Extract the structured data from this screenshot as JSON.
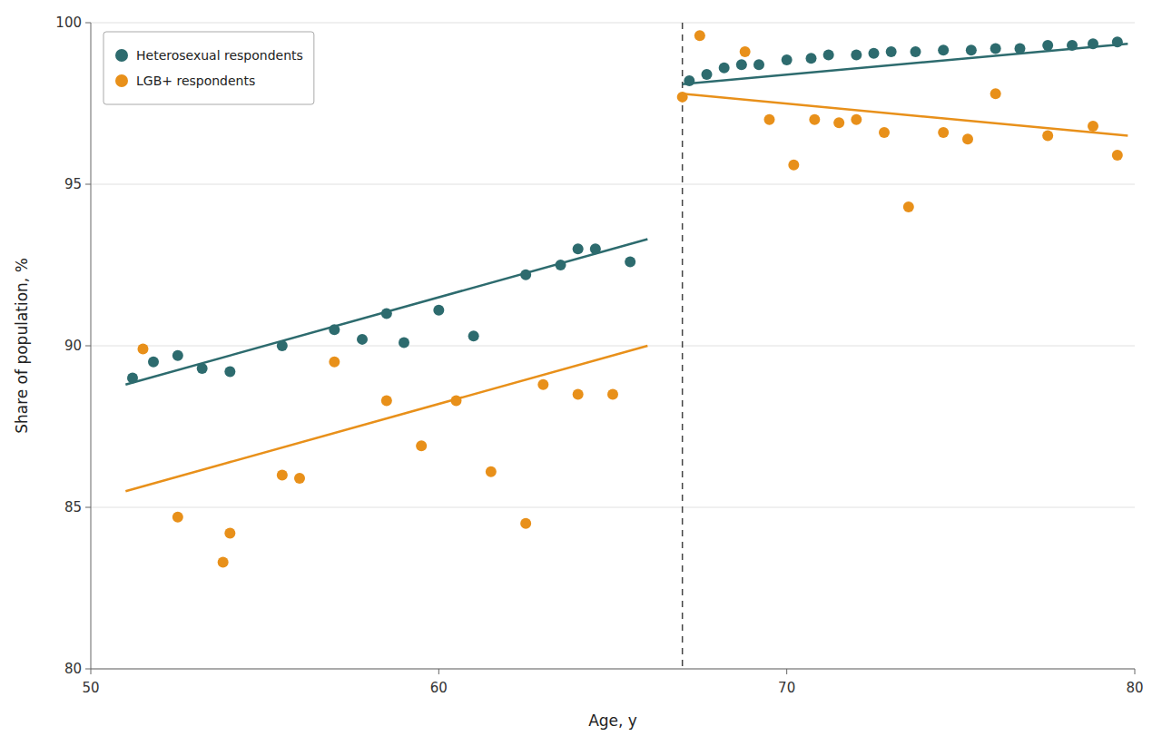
{
  "chart_data": {
    "type": "scatter",
    "xlabel": "Age, y",
    "ylabel": "Share of population, %",
    "xlim": [
      50,
      80
    ],
    "ylim": [
      80,
      100
    ],
    "xticks": [
      50,
      60,
      70,
      80
    ],
    "yticks": [
      80,
      85,
      90,
      95,
      100
    ],
    "grid": "y",
    "legend": "upper left",
    "vline_x": 67.0,
    "series": [
      {
        "name": "Heterosexual respondents",
        "type": "scatter",
        "marker": "circle",
        "color": "#2D6B6E",
        "x": [
          51.2,
          51.8,
          52.5,
          53.2,
          54.0,
          55.5,
          57.0,
          57.8,
          58.5,
          59.0,
          60.0,
          61.0,
          62.5,
          63.5,
          64.0,
          64.5,
          65.5
        ],
        "values": [
          89.0,
          89.5,
          89.7,
          89.3,
          89.2,
          90.0,
          90.5,
          90.2,
          91.0,
          90.1,
          91.1,
          90.3,
          92.2,
          92.5,
          93.0,
          93.0,
          92.6
        ]
      },
      {
        "name": "LGB+ respondents",
        "type": "scatter",
        "marker": "circle",
        "color": "#E8901A",
        "x": [
          51.5,
          52.5,
          53.8,
          54.0,
          55.5,
          56.0,
          57.0,
          58.5,
          59.5,
          60.5,
          61.5,
          62.5,
          63.0,
          64.0,
          65.0
        ],
        "values": [
          89.9,
          84.7,
          83.3,
          84.2,
          86.0,
          85.9,
          89.5,
          88.3,
          86.9,
          88.3,
          86.1,
          84.5,
          88.8,
          88.5,
          88.5
        ]
      },
      {
        "type": "scatter",
        "marker": "circle",
        "color": "#2D6B6E",
        "x": [
          67.2,
          67.7,
          68.2,
          68.7,
          69.2,
          70.0,
          70.7,
          71.2,
          72.0,
          72.5,
          73.0,
          73.7,
          74.5,
          75.3,
          76.0,
          76.7,
          77.5,
          78.2,
          78.8,
          79.5
        ],
        "values": [
          98.2,
          98.4,
          98.6,
          98.7,
          98.7,
          98.85,
          98.9,
          99.0,
          99.0,
          99.05,
          99.1,
          99.1,
          99.15,
          99.15,
          99.2,
          99.2,
          99.3,
          99.3,
          99.35,
          99.4
        ]
      },
      {
        "type": "scatter",
        "marker": "circle",
        "color": "#E8901A",
        "x": [
          67.0,
          67.5,
          68.8,
          69.5,
          70.2,
          70.8,
          71.5,
          72.0,
          72.8,
          73.5,
          74.5,
          75.2,
          76.0,
          77.5,
          78.8,
          79.5
        ],
        "values": [
          97.7,
          99.6,
          99.1,
          97.0,
          95.6,
          97.0,
          96.9,
          97.0,
          96.6,
          94.3,
          96.6,
          96.4,
          97.8,
          96.5,
          96.8,
          95.9
        ]
      },
      {
        "type": "line",
        "line_style": "solid",
        "color": "#2D6B6E",
        "x": [
          51.0,
          66.0
        ],
        "values": [
          88.8,
          93.3
        ]
      },
      {
        "type": "line",
        "line_style": "solid",
        "color": "#E8901A",
        "x": [
          51.0,
          66.0
        ],
        "values": [
          85.5,
          90.0
        ]
      },
      {
        "type": "line",
        "line_style": "solid",
        "color": "#2D6B6E",
        "x": [
          67.0,
          79.8
        ],
        "values": [
          98.1,
          99.35
        ]
      },
      {
        "type": "line",
        "line_style": "solid",
        "color": "#E8901A",
        "x": [
          67.0,
          79.8
        ],
        "values": [
          97.8,
          96.5
        ]
      }
    ]
  }
}
